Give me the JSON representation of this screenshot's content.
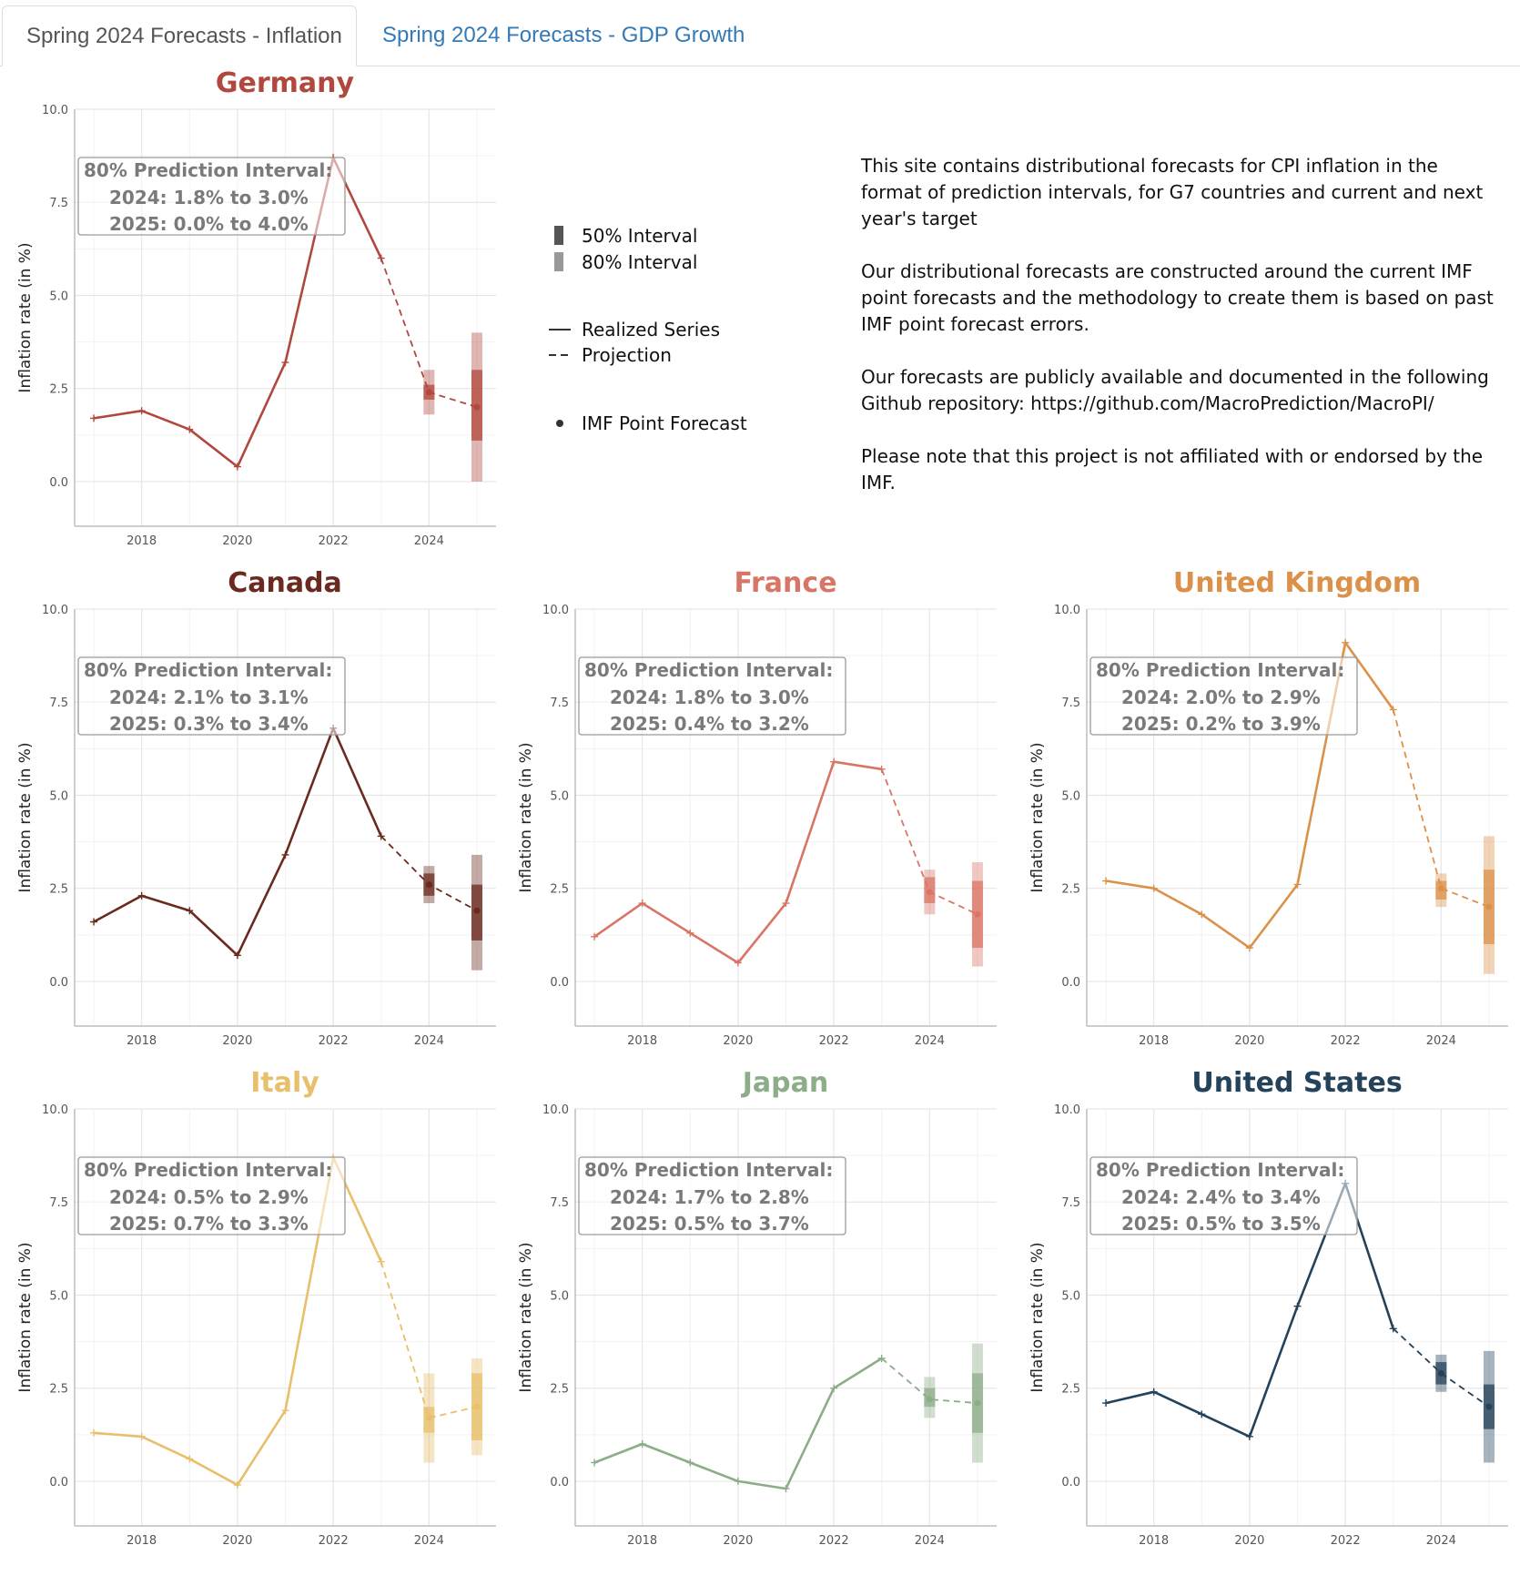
{
  "tabs": [
    {
      "label": "Spring 2024 Forecasts - Inflation",
      "active": true
    },
    {
      "label": "Spring 2024 Forecasts - GDP Growth",
      "active": false
    }
  ],
  "legend": {
    "interval50": "50% Interval",
    "interval80": "80% Interval",
    "realized": "Realized Series",
    "projection": "Projection",
    "point": "IMF Point Forecast"
  },
  "info": {
    "p1": "This site contains  distributional forecasts for CPI inflation in the format of prediction intervals, for G7 countries and current and next year's target",
    "p2": "Our distributional forecasts are constructed around the current IMF point forecasts and the methodology to create them is based on past IMF point forecast errors.",
    "p3": "Our forecasts are publicly available and documented in the following Github repository: https://github.com/MacroPrediction/MacroPI/",
    "p4": "Please note that this project is not affiliated with or endorsed by the IMF."
  },
  "chart_data": [
    {
      "type": "line",
      "title": "Germany",
      "color": "#b0483d",
      "ylabel": "Inflation rate (in %)",
      "ylim": [
        -1.2,
        10
      ],
      "xlim": [
        2016.6,
        2025.4
      ],
      "yticks": [
        "0.0",
        "2.5",
        "5.0",
        "7.5",
        "10.0"
      ],
      "xticks": [
        "2018",
        "2020",
        "2022",
        "2024"
      ],
      "grid": true,
      "box_title": "80% Prediction Interval:",
      "box_lines": [
        "2024: 1.8% to 3.0%",
        "2025: 0.0% to 4.0%"
      ],
      "realized": {
        "x": [
          2017,
          2018,
          2019,
          2020,
          2021,
          2022,
          2023
        ],
        "y": [
          1.7,
          1.9,
          1.4,
          0.4,
          3.2,
          8.7,
          6.0
        ]
      },
      "projection": {
        "x": [
          2023,
          2024,
          2025
        ],
        "y": [
          6.0,
          2.4,
          2.0
        ]
      },
      "intervals": [
        {
          "year": 2024,
          "point": 2.4,
          "i50": [
            2.2,
            2.6
          ],
          "i80": [
            1.8,
            3.0
          ]
        },
        {
          "year": 2025,
          "point": 2.0,
          "i50": [
            1.1,
            3.0
          ],
          "i80": [
            0.0,
            4.0
          ]
        }
      ]
    },
    {
      "type": "line",
      "title": "Canada",
      "color": "#6b2a1f",
      "ylabel": "Inflation rate (in %)",
      "ylim": [
        -1.2,
        10
      ],
      "xlim": [
        2016.6,
        2025.4
      ],
      "yticks": [
        "0.0",
        "2.5",
        "5.0",
        "7.5",
        "10.0"
      ],
      "xticks": [
        "2018",
        "2020",
        "2022",
        "2024"
      ],
      "grid": true,
      "box_title": "80% Prediction Interval:",
      "box_lines": [
        "2024: 2.1% to 3.1%",
        "2025: 0.3% to 3.4%"
      ],
      "realized": {
        "x": [
          2017,
          2018,
          2019,
          2020,
          2021,
          2022,
          2023
        ],
        "y": [
          1.6,
          2.3,
          1.9,
          0.7,
          3.4,
          6.8,
          3.9
        ]
      },
      "projection": {
        "x": [
          2023,
          2024,
          2025
        ],
        "y": [
          3.9,
          2.6,
          1.9
        ]
      },
      "intervals": [
        {
          "year": 2024,
          "point": 2.6,
          "i50": [
            2.3,
            2.9
          ],
          "i80": [
            2.1,
            3.1
          ]
        },
        {
          "year": 2025,
          "point": 1.9,
          "i50": [
            1.1,
            2.6
          ],
          "i80": [
            0.3,
            3.4
          ]
        }
      ]
    },
    {
      "type": "line",
      "title": "France",
      "color": "#d97566",
      "ylabel": "Inflation rate (in %)",
      "ylim": [
        -1.2,
        10
      ],
      "xlim": [
        2016.6,
        2025.4
      ],
      "yticks": [
        "0.0",
        "2.5",
        "5.0",
        "7.5",
        "10.0"
      ],
      "xticks": [
        "2018",
        "2020",
        "2022",
        "2024"
      ],
      "grid": true,
      "box_title": "80% Prediction Interval:",
      "box_lines": [
        "2024: 1.8% to 3.0%",
        "2025: 0.4% to 3.2%"
      ],
      "realized": {
        "x": [
          2017,
          2018,
          2019,
          2020,
          2021,
          2022,
          2023
        ],
        "y": [
          1.2,
          2.1,
          1.3,
          0.5,
          2.1,
          5.9,
          5.7
        ]
      },
      "projection": {
        "x": [
          2023,
          2024,
          2025
        ],
        "y": [
          5.7,
          2.4,
          1.8
        ]
      },
      "intervals": [
        {
          "year": 2024,
          "point": 2.4,
          "i50": [
            2.1,
            2.8
          ],
          "i80": [
            1.8,
            3.0
          ]
        },
        {
          "year": 2025,
          "point": 1.8,
          "i50": [
            0.9,
            2.7
          ],
          "i80": [
            0.4,
            3.2
          ]
        }
      ]
    },
    {
      "type": "line",
      "title": "United Kingdom",
      "color": "#dc914a",
      "ylabel": "Inflation rate (in %)",
      "ylim": [
        -1.2,
        10
      ],
      "xlim": [
        2016.6,
        2025.4
      ],
      "yticks": [
        "0.0",
        "2.5",
        "5.0",
        "7.5",
        "10.0"
      ],
      "xticks": [
        "2018",
        "2020",
        "2022",
        "2024"
      ],
      "grid": true,
      "box_title": "80% Prediction Interval:",
      "box_lines": [
        "2024: 2.0% to 2.9%",
        "2025: 0.2% to 3.9%"
      ],
      "realized": {
        "x": [
          2017,
          2018,
          2019,
          2020,
          2021,
          2022,
          2023
        ],
        "y": [
          2.7,
          2.5,
          1.8,
          0.9,
          2.6,
          9.1,
          7.3
        ]
      },
      "projection": {
        "x": [
          2023,
          2024,
          2025
        ],
        "y": [
          7.3,
          2.5,
          2.0
        ]
      },
      "intervals": [
        {
          "year": 2024,
          "point": 2.5,
          "i50": [
            2.2,
            2.7
          ],
          "i80": [
            2.0,
            2.9
          ]
        },
        {
          "year": 2025,
          "point": 2.0,
          "i50": [
            1.0,
            3.0
          ],
          "i80": [
            0.2,
            3.9
          ]
        }
      ]
    },
    {
      "type": "line",
      "title": "Italy",
      "color": "#e8bf6a",
      "ylabel": "Inflation rate (in %)",
      "ylim": [
        -1.2,
        10
      ],
      "xlim": [
        2016.6,
        2025.4
      ],
      "yticks": [
        "0.0",
        "2.5",
        "5.0",
        "7.5",
        "10.0"
      ],
      "xticks": [
        "2018",
        "2020",
        "2022",
        "2024"
      ],
      "grid": true,
      "box_title": "80% Prediction Interval:",
      "box_lines": [
        "2024: 0.5% to 2.9%",
        "2025: 0.7% to 3.3%"
      ],
      "realized": {
        "x": [
          2017,
          2018,
          2019,
          2020,
          2021,
          2022,
          2023
        ],
        "y": [
          1.3,
          1.2,
          0.6,
          -0.1,
          1.9,
          8.7,
          5.9
        ]
      },
      "projection": {
        "x": [
          2023,
          2024,
          2025
        ],
        "y": [
          5.9,
          1.7,
          2.0
        ]
      },
      "intervals": [
        {
          "year": 2024,
          "point": 1.7,
          "i50": [
            1.3,
            2.0
          ],
          "i80": [
            0.5,
            2.9
          ]
        },
        {
          "year": 2025,
          "point": 2.0,
          "i50": [
            1.1,
            2.9
          ],
          "i80": [
            0.7,
            3.3
          ]
        }
      ]
    },
    {
      "type": "line",
      "title": "Japan",
      "color": "#8cad88",
      "ylabel": "Inflation rate (in %)",
      "ylim": [
        -1.2,
        10
      ],
      "xlim": [
        2016.6,
        2025.4
      ],
      "yticks": [
        "0.0",
        "2.5",
        "5.0",
        "7.5",
        "10.0"
      ],
      "xticks": [
        "2018",
        "2020",
        "2022",
        "2024"
      ],
      "grid": true,
      "box_title": "80% Prediction Interval:",
      "box_lines": [
        "2024: 1.7% to 2.8%",
        "2025: 0.5% to 3.7%"
      ],
      "realized": {
        "x": [
          2017,
          2018,
          2019,
          2020,
          2021,
          2022,
          2023
        ],
        "y": [
          0.5,
          1.0,
          0.5,
          0.0,
          -0.2,
          2.5,
          3.3
        ]
      },
      "projection": {
        "x": [
          2023,
          2024,
          2025
        ],
        "y": [
          3.3,
          2.2,
          2.1
        ]
      },
      "intervals": [
        {
          "year": 2024,
          "point": 2.2,
          "i50": [
            2.0,
            2.5
          ],
          "i80": [
            1.7,
            2.8
          ]
        },
        {
          "year": 2025,
          "point": 2.1,
          "i50": [
            1.3,
            2.9
          ],
          "i80": [
            0.5,
            3.7
          ]
        }
      ]
    },
    {
      "type": "line",
      "title": "United States",
      "color": "#24425a",
      "ylabel": "Inflation rate (in %)",
      "ylim": [
        -1.2,
        10
      ],
      "xlim": [
        2016.6,
        2025.4
      ],
      "yticks": [
        "0.0",
        "2.5",
        "5.0",
        "7.5",
        "10.0"
      ],
      "xticks": [
        "2018",
        "2020",
        "2022",
        "2024"
      ],
      "grid": true,
      "box_title": "80% Prediction Interval:",
      "box_lines": [
        "2024: 2.4% to 3.4%",
        "2025: 0.5% to 3.5%"
      ],
      "realized": {
        "x": [
          2017,
          2018,
          2019,
          2020,
          2021,
          2022,
          2023
        ],
        "y": [
          2.1,
          2.4,
          1.8,
          1.2,
          4.7,
          8.0,
          4.1
        ]
      },
      "projection": {
        "x": [
          2023,
          2024,
          2025
        ],
        "y": [
          4.1,
          2.9,
          2.0
        ]
      },
      "intervals": [
        {
          "year": 2024,
          "point": 2.9,
          "i50": [
            2.6,
            3.2
          ],
          "i80": [
            2.4,
            3.4
          ]
        },
        {
          "year": 2025,
          "point": 2.0,
          "i50": [
            1.4,
            2.6
          ],
          "i80": [
            0.5,
            3.5
          ]
        }
      ]
    }
  ]
}
